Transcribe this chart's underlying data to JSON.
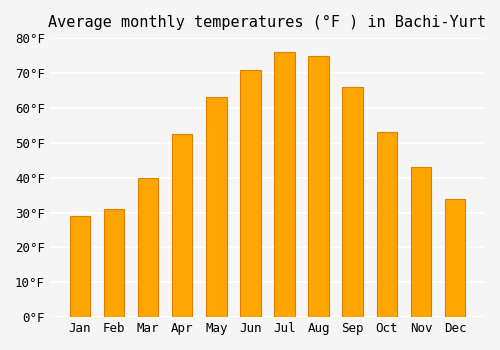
{
  "title": "Average monthly temperatures (°F ) in Bachi-Yurt",
  "months": [
    "Jan",
    "Feb",
    "Mar",
    "Apr",
    "May",
    "Jun",
    "Jul",
    "Aug",
    "Sep",
    "Oct",
    "Nov",
    "Dec"
  ],
  "values": [
    29,
    31,
    40,
    52.5,
    63,
    71,
    76,
    75,
    66,
    53,
    43,
    34
  ],
  "bar_color": "#FFA500",
  "bar_edge_color": "#E08000",
  "background_color": "#f5f5f5",
  "grid_color": "#ffffff",
  "ylim": [
    0,
    80
  ],
  "yticks": [
    0,
    10,
    20,
    30,
    40,
    50,
    60,
    70,
    80
  ],
  "title_fontsize": 11,
  "tick_fontsize": 9,
  "font_family": "monospace"
}
